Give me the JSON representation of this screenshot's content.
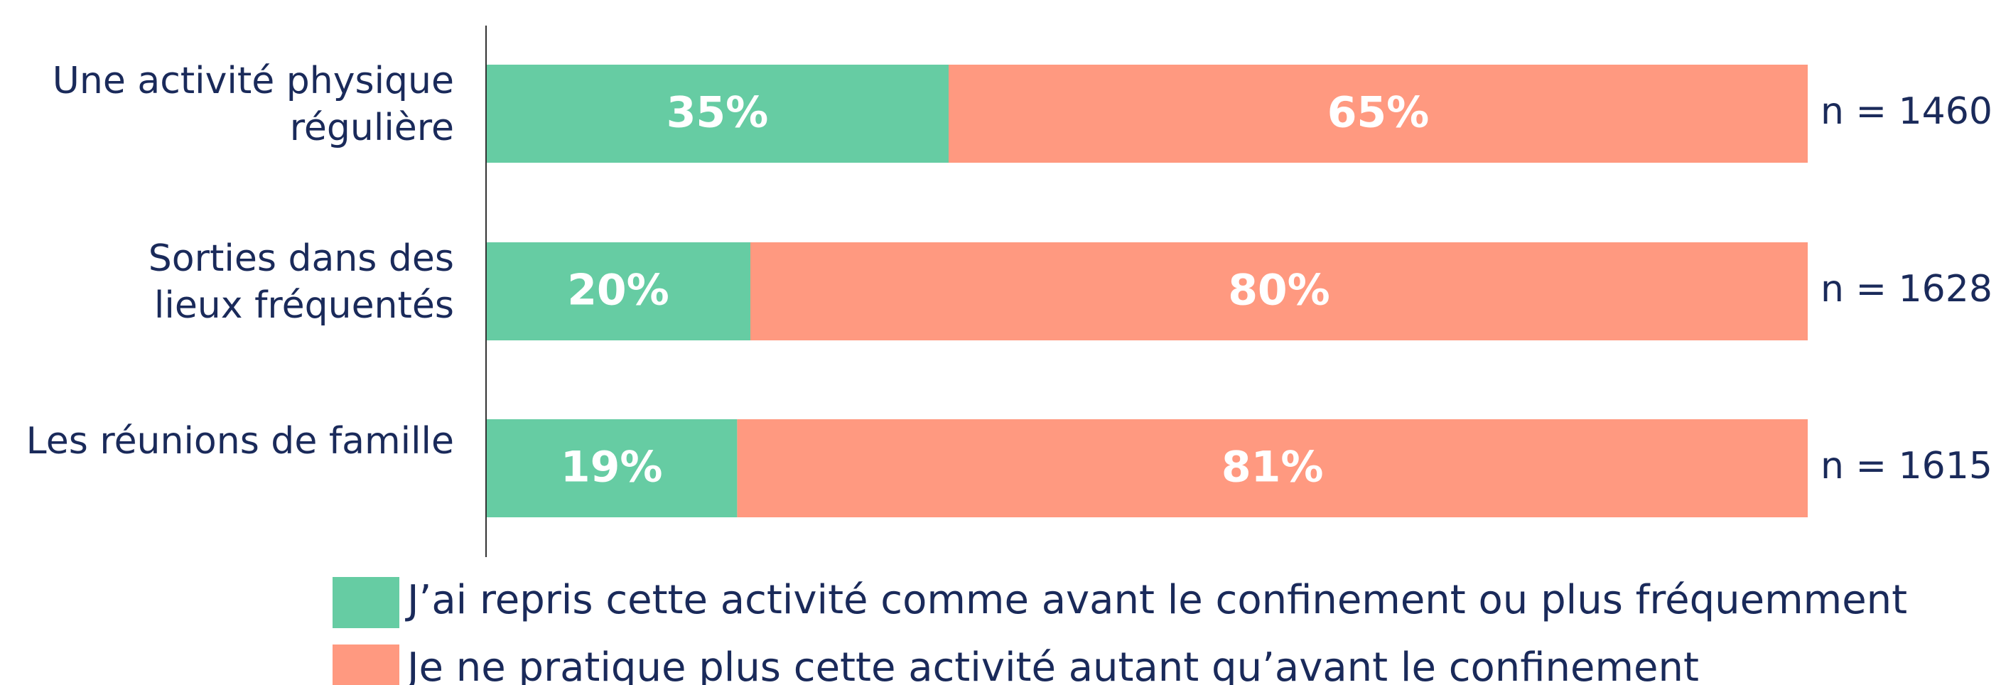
{
  "chart_data": {
    "type": "stacked-bar-horizontal",
    "categories": [
      [
        "Une activité physique",
        "régulière"
      ],
      [
        "Sorties dans des",
        "lieux fréquentés"
      ],
      [
        "Les réunions de famille"
      ]
    ],
    "series": [
      {
        "name": "J’ai repris cette activité comme avant le confinement ou plus fréquemment",
        "color": "#66cca3",
        "values": [
          35,
          20,
          19
        ],
        "value_labels": [
          "35%",
          "20%",
          "19%"
        ]
      },
      {
        "name": "Je ne pratique plus cette activité autant qu’avant le confinement",
        "color": "#ff9980",
        "values": [
          65,
          80,
          81
        ],
        "value_labels": [
          "65%",
          "80%",
          "81%"
        ]
      }
    ],
    "annotations": [
      "n = 1460",
      "n = 1628",
      "n = 1615"
    ]
  }
}
